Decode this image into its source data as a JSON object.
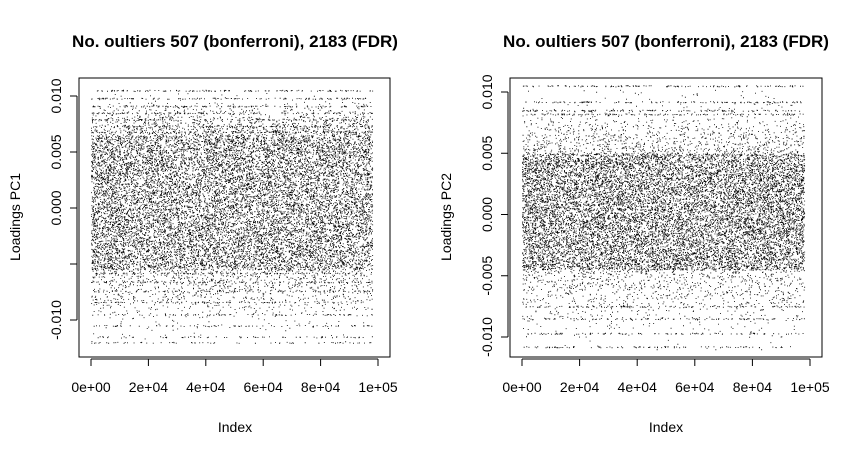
{
  "chart_data": [
    {
      "type": "scatter",
      "title": "No. oultiers 507 (bonferroni), 2183 (FDR)",
      "xlabel": "Index",
      "ylabel": "Loadings PC1",
      "xlim": [
        0,
        100000
      ],
      "ylim": [
        -0.0122,
        0.0108
      ],
      "x_ticks": [
        {
          "value": 0,
          "label": "0e+00"
        },
        {
          "value": 20000,
          "label": "2e+04"
        },
        {
          "value": 40000,
          "label": "4e+04"
        },
        {
          "value": 60000,
          "label": "6e+04"
        },
        {
          "value": 80000,
          "label": "8e+04"
        },
        {
          "value": 100000,
          "label": "1e+05"
        }
      ],
      "y_ticks": [
        {
          "value": -0.01,
          "label": "-0.010"
        },
        {
          "value": -0.005,
          "label": ""
        },
        {
          "value": 0.0,
          "label": "0.000"
        },
        {
          "value": 0.005,
          "label": "0.005"
        },
        {
          "value": 0.01,
          "label": "0.010"
        }
      ],
      "n_points": 98000,
      "core_band": [
        -0.0055,
        0.0065
      ],
      "extreme_range": [
        -0.012,
        0.0105
      ],
      "point_color": "#000000",
      "grid": false,
      "legend": "none"
    },
    {
      "type": "scatter",
      "title": "No. oultiers 507 (bonferroni), 2183 (FDR)",
      "xlabel": "Index",
      "ylabel": "Loadings PC2",
      "xlim": [
        0,
        100000
      ],
      "ylim": [
        -0.0112,
        0.0108
      ],
      "x_ticks": [
        {
          "value": 0,
          "label": "0e+00"
        },
        {
          "value": 20000,
          "label": "2e+04"
        },
        {
          "value": 40000,
          "label": "4e+04"
        },
        {
          "value": 60000,
          "label": "6e+04"
        },
        {
          "value": 80000,
          "label": "8e+04"
        },
        {
          "value": 100000,
          "label": "1e+05"
        }
      ],
      "y_ticks": [
        {
          "value": -0.01,
          "label": "-0.010"
        },
        {
          "value": -0.005,
          "label": "-0.005"
        },
        {
          "value": 0.0,
          "label": "0.000"
        },
        {
          "value": 0.005,
          "label": "0.005"
        },
        {
          "value": 0.01,
          "label": "0.010"
        }
      ],
      "n_points": 98000,
      "core_band": [
        -0.0045,
        0.005
      ],
      "extreme_range": [
        -0.011,
        0.0105
      ],
      "point_color": "#000000",
      "grid": false,
      "legend": "none"
    }
  ]
}
